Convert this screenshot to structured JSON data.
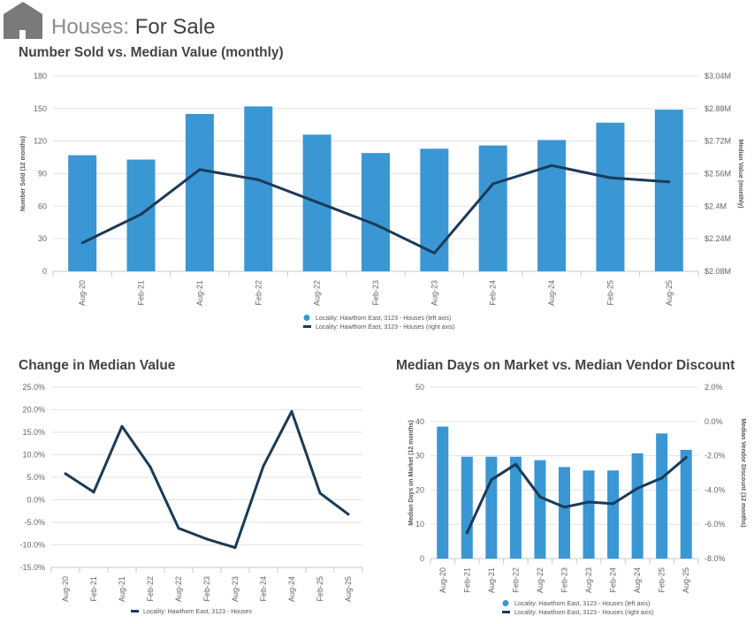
{
  "header": {
    "title_light": "Houses:",
    "title_bold": "For Sale"
  },
  "chart_data": [
    {
      "type": "bar+line",
      "title": "Number Sold vs. Median Value (monthly)",
      "ylabel": "Number Sold (12 months)",
      "y2label": "Median Value (monthly)",
      "ylim": [
        0,
        180
      ],
      "y2lim": [
        2.08,
        3.04
      ],
      "yticks": [
        "0",
        "30",
        "60",
        "90",
        "120",
        "150",
        "180"
      ],
      "y2ticks": [
        "$2.08M",
        "$2.24M",
        "$2.4M",
        "$2.56M",
        "$2.72M",
        "$2.88M",
        "$3.04M"
      ],
      "categories": [
        "Aug-20",
        "Feb-21",
        "Aug-21",
        "Feb-22",
        "Aug-22",
        "Feb-23",
        "Aug-23",
        "Feb-24",
        "Aug-24",
        "Feb-25",
        "Aug-25"
      ],
      "series": [
        {
          "name": "Locality: Hawthorn East, 3123 - Houses (left axis)",
          "kind": "bar",
          "axis": "left",
          "color": "#3a97d4",
          "values": [
            107,
            103,
            145,
            152,
            126,
            109,
            113,
            116,
            121,
            137,
            149
          ]
        },
        {
          "name": "Locality: Hawthorn East, 3123 - Houses (right axis)",
          "kind": "line",
          "axis": "right",
          "color": "#1b3a57",
          "values": [
            2.22,
            2.36,
            2.58,
            2.53,
            2.42,
            2.31,
            2.17,
            2.51,
            2.6,
            2.54,
            2.52
          ]
        }
      ],
      "grid": true,
      "legend": "bottom-center"
    },
    {
      "type": "line",
      "title": "Change in Median Value",
      "ylim": [
        -15,
        25
      ],
      "yticks": [
        "-15.0%",
        "-10.0%",
        "-5.0%",
        "0.0%",
        "5.0%",
        "10.0%",
        "15.0%",
        "20.0%",
        "25.0%"
      ],
      "categories": [
        "Aug-20",
        "Feb-21",
        "Aug-21",
        "Feb-22",
        "Aug-22",
        "Feb-23",
        "Aug-23",
        "Feb-24",
        "Aug-24",
        "Feb-25",
        "Aug-25"
      ],
      "series": [
        {
          "name": "Locality: Hawthorn East, 3123 - Houses",
          "kind": "line",
          "axis": "left",
          "color": "#1b3a57",
          "values": [
            5.8,
            1.7,
            16.3,
            7.3,
            -6.3,
            -8.7,
            -10.6,
            7.5,
            19.6,
            1.5,
            -3.2
          ]
        }
      ],
      "grid": true,
      "legend": "bottom-center"
    },
    {
      "type": "bar+line",
      "title": "Median Days on Market vs. Median Vendor Discount",
      "ylabel": "Median Days on Market (12 months)",
      "y2label": "Median Vendor Discount (12 months)",
      "ylim": [
        0,
        50
      ],
      "y2lim": [
        -8,
        2
      ],
      "yticks": [
        "0",
        "10",
        "20",
        "30",
        "40",
        "50"
      ],
      "y2ticks": [
        "-8.0%",
        "-6.0%",
        "-4.0%",
        "-2.0%",
        "0.0%",
        "2.0%"
      ],
      "categories": [
        "Aug-20",
        "Feb-21",
        "Aug-21",
        "Feb-22",
        "Aug-22",
        "Feb-23",
        "Aug-23",
        "Feb-24",
        "Aug-24",
        "Feb-25",
        "Aug-25"
      ],
      "series": [
        {
          "name": "Locality: Hawthorn East, 3123 - Houses (left axis)",
          "kind": "bar",
          "axis": "left",
          "color": "#3a97d4",
          "values": [
            38.5,
            29.7,
            29.7,
            29.7,
            28.7,
            26.7,
            25.7,
            25.7,
            30.7,
            36.5,
            31.7
          ]
        },
        {
          "name": "Locality: Hawthorn East, 3123 - Houses (right axis)",
          "kind": "line",
          "axis": "right",
          "color": "#1b3a57",
          "values": [
            null,
            -6.5,
            -3.4,
            -2.5,
            -4.4,
            -5.0,
            -4.7,
            -4.8,
            -3.9,
            -3.3,
            -2.1
          ]
        }
      ],
      "grid": true,
      "legend": "bottom-center"
    }
  ]
}
